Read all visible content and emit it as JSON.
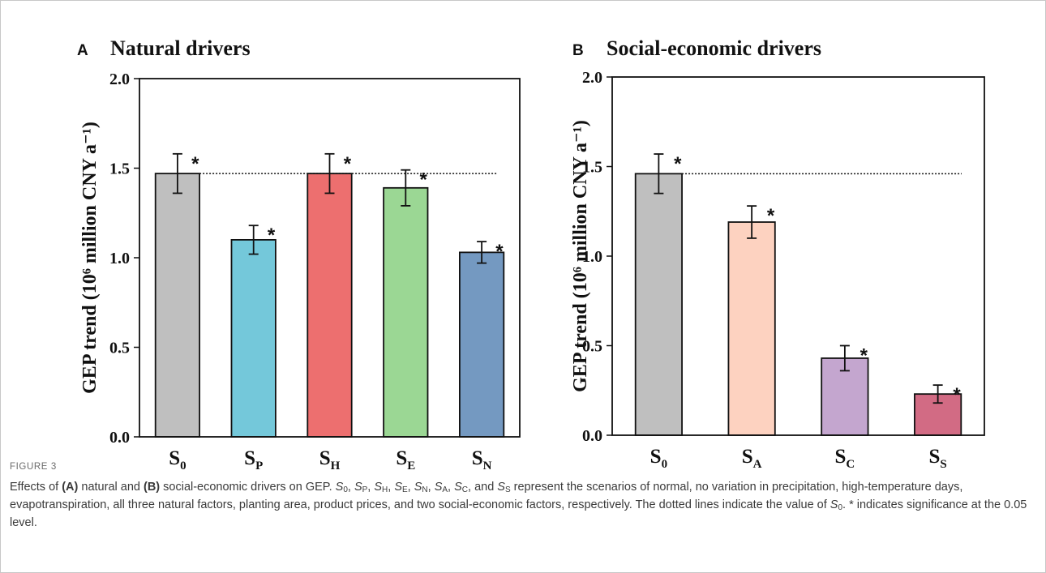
{
  "chart_data": [
    {
      "type": "bar",
      "panel_letter": "A",
      "title": "Natural drivers",
      "ylabel": "GEP trend (10⁶ million CNY a⁻¹)",
      "ylim": [
        0,
        2
      ],
      "yticks": [
        "0.0",
        "0.5",
        "1.0",
        "1.5",
        "2.0"
      ],
      "categories": [
        {
          "base": "S",
          "sub": "0"
        },
        {
          "base": "S",
          "sub": "P"
        },
        {
          "base": "S",
          "sub": "H"
        },
        {
          "base": "S",
          "sub": "E"
        },
        {
          "base": "S",
          "sub": "N"
        }
      ],
      "values": [
        1.47,
        1.1,
        1.47,
        1.39,
        1.03
      ],
      "errors": [
        0.11,
        0.08,
        0.11,
        0.1,
        0.06
      ],
      "colors": [
        "#bfbfbf",
        "#74c8da",
        "#ed6f6f",
        "#9bd794",
        "#7499c1"
      ],
      "significance": [
        "*",
        "*",
        "*",
        "*",
        "*"
      ],
      "reference_line": 1.47
    },
    {
      "type": "bar",
      "panel_letter": "B",
      "title": "Social-economic drivers",
      "ylabel": "GEP trend (10⁶ million CNY a⁻¹)",
      "ylim": [
        0,
        2
      ],
      "yticks": [
        "0.0",
        "0.5",
        "1.0",
        "1.5",
        "2.0"
      ],
      "categories": [
        {
          "base": "S",
          "sub": "0"
        },
        {
          "base": "S",
          "sub": "A"
        },
        {
          "base": "S",
          "sub": "C"
        },
        {
          "base": "S",
          "sub": "S"
        }
      ],
      "values": [
        1.46,
        1.19,
        0.43,
        0.23
      ],
      "errors": [
        0.11,
        0.09,
        0.07,
        0.05
      ],
      "colors": [
        "#bfbfbf",
        "#fdd2c0",
        "#c4a6cf",
        "#d26b84"
      ],
      "significance": [
        "*",
        "*",
        "*",
        "*"
      ],
      "reference_line": 1.46
    }
  ],
  "figure": {
    "label": "FIGURE 3",
    "caption": {
      "t1": "Effects of ",
      "b1": "(A)",
      "t2": " natural and ",
      "b2": "(B)",
      "t3": " social-economic drivers on GEP. ",
      "scenarios": [
        "0",
        "P",
        "H",
        "E",
        "N",
        "A",
        "C",
        "S"
      ],
      "t4": " represent the scenarios of normal, no variation in precipitation, high-temperature days, evapotranspiration, all three natural factors, planting area, product prices, and two social-economic factors, respectively. The dotted lines indicate the value of ",
      "s0_sub": "0",
      "t5": ". * indicates significance at the 0.05 level."
    }
  }
}
